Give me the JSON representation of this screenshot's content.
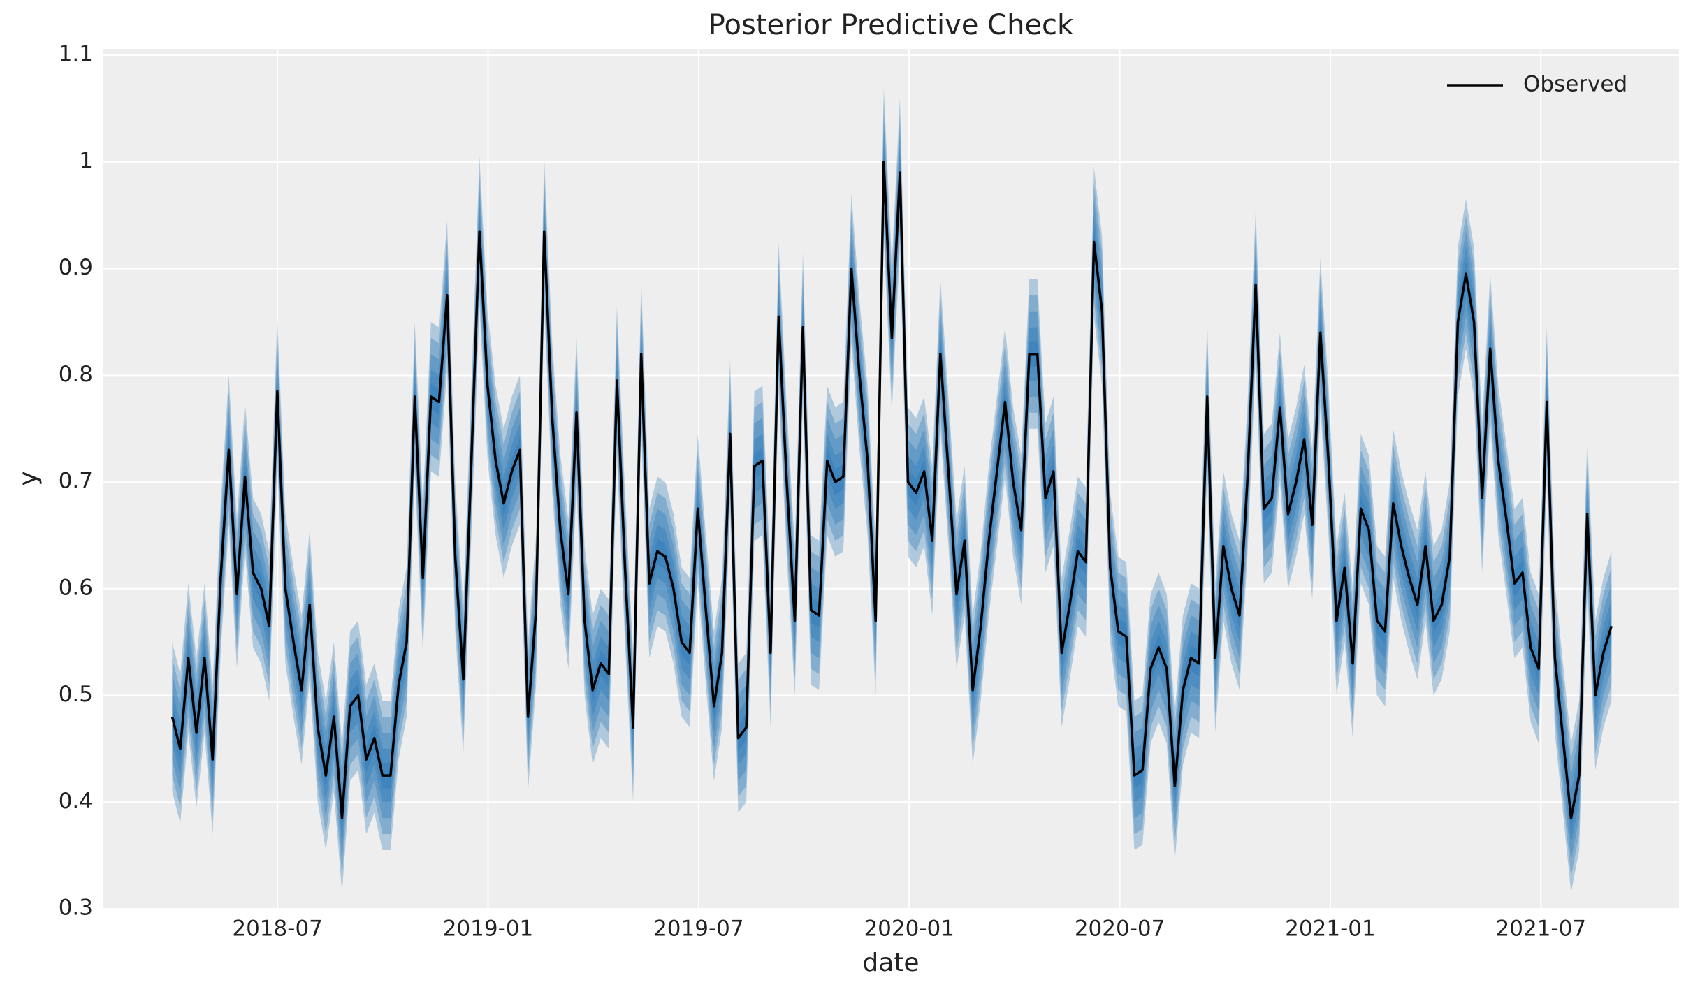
{
  "chart_data": {
    "type": "line",
    "title": "Posterior Predictive Check",
    "x_label": "date",
    "y_label": "y",
    "x": [
      2018.25,
      2018.2692,
      2018.2884,
      2018.3076,
      2018.3268,
      2018.346,
      2018.3652,
      2018.3844,
      2018.4036,
      2018.4228,
      2018.442,
      2018.4612,
      2018.4804,
      2018.4996,
      2018.5188,
      2018.538,
      2018.5572,
      2018.5764,
      2018.5956,
      2018.6148,
      2018.634,
      2018.6532,
      2018.6724,
      2018.6916,
      2018.7108,
      2018.73,
      2018.7492,
      2018.7684,
      2018.7876,
      2018.8068,
      2018.826,
      2018.8452,
      2018.8644,
      2018.8836,
      2018.9028,
      2018.922,
      2018.9412,
      2018.9604,
      2018.9796,
      2018.9988,
      2019.018,
      2019.0372,
      2019.0564,
      2019.0756,
      2019.0948,
      2019.114,
      2019.1332,
      2019.1524,
      2019.1716,
      2019.1908,
      2019.21,
      2019.2292,
      2019.2484,
      2019.2676,
      2019.2868,
      2019.306,
      2019.3252,
      2019.3444,
      2019.3636,
      2019.3828,
      2019.402,
      2019.4212,
      2019.4404,
      2019.4596,
      2019.4788,
      2019.498,
      2019.5172,
      2019.5364,
      2019.5556,
      2019.5748,
      2019.594,
      2019.6132,
      2019.6324,
      2019.6516,
      2019.6708,
      2019.69,
      2019.7092,
      2019.7284,
      2019.7476,
      2019.7668,
      2019.786,
      2019.8052,
      2019.8244,
      2019.8436,
      2019.8628,
      2019.882,
      2019.9012,
      2019.9204,
      2019.9396,
      2019.9588,
      2019.978,
      2019.9972,
      2020.0164,
      2020.0356,
      2020.0548,
      2020.074,
      2020.0932,
      2020.1124,
      2020.1316,
      2020.1508,
      2020.17,
      2020.1892,
      2020.2084,
      2020.2276,
      2020.2468,
      2020.266,
      2020.2852,
      2020.3044,
      2020.3236,
      2020.3428,
      2020.362,
      2020.3812,
      2020.4004,
      2020.4196,
      2020.4388,
      2020.458,
      2020.4772,
      2020.4964,
      2020.5156,
      2020.5348,
      2020.554,
      2020.5732,
      2020.5924,
      2020.6116,
      2020.6308,
      2020.65,
      2020.6692,
      2020.6884,
      2020.7076,
      2020.7268,
      2020.746,
      2020.7652,
      2020.7844,
      2020.8036,
      2020.8228,
      2020.842,
      2020.8612,
      2020.8804,
      2020.8996,
      2020.9188,
      2020.938,
      2020.9572,
      2020.9764,
      2020.9956,
      2021.0148,
      2021.034,
      2021.0532,
      2021.0724,
      2021.0916,
      2021.1108,
      2021.13,
      2021.1492,
      2021.1684,
      2021.1876,
      2021.2068,
      2021.226,
      2021.2452,
      2021.2644,
      2021.2836,
      2021.3028,
      2021.322,
      2021.3412,
      2021.3604,
      2021.3796,
      2021.3988,
      2021.418,
      2021.4372,
      2021.4564,
      2021.4756,
      2021.4948,
      2021.514,
      2021.5332,
      2021.5524,
      2021.5716,
      2021.5908,
      2021.61,
      2021.6292,
      2021.6484,
      2021.6676
    ],
    "series": [
      {
        "name": "Observed",
        "color": "#000000",
        "values": [
          0.48,
          0.45,
          0.535,
          0.465,
          0.535,
          0.44,
          0.61,
          0.73,
          0.595,
          0.705,
          0.615,
          0.6,
          0.565,
          0.785,
          0.6,
          0.55,
          0.505,
          0.585,
          0.47,
          0.425,
          0.48,
          0.385,
          0.49,
          0.5,
          0.44,
          0.46,
          0.425,
          0.425,
          0.51,
          0.55,
          0.78,
          0.61,
          0.78,
          0.775,
          0.875,
          0.63,
          0.515,
          0.72,
          0.935,
          0.79,
          0.72,
          0.68,
          0.71,
          0.73,
          0.48,
          0.58,
          0.935,
          0.76,
          0.655,
          0.595,
          0.765,
          0.57,
          0.505,
          0.53,
          0.52,
          0.795,
          0.62,
          0.47,
          0.82,
          0.605,
          0.635,
          0.63,
          0.6,
          0.55,
          0.54,
          0.675,
          0.58,
          0.49,
          0.54,
          0.745,
          0.46,
          0.47,
          0.715,
          0.72,
          0.54,
          0.855,
          0.7,
          0.57,
          0.845,
          0.58,
          0.575,
          0.72,
          0.7,
          0.705,
          0.9,
          0.8,
          0.72,
          0.57,
          1.0,
          0.835,
          0.99,
          0.7,
          0.69,
          0.71,
          0.645,
          0.82,
          0.71,
          0.595,
          0.645,
          0.505,
          0.565,
          0.645,
          0.71,
          0.775,
          0.7,
          0.655,
          0.82,
          0.82,
          0.685,
          0.71,
          0.54,
          0.585,
          0.635,
          0.625,
          0.925,
          0.86,
          0.62,
          0.56,
          0.555,
          0.425,
          0.43,
          0.525,
          0.545,
          0.525,
          0.415,
          0.505,
          0.535,
          0.53,
          0.78,
          0.535,
          0.64,
          0.6,
          0.575,
          0.705,
          0.885,
          0.675,
          0.685,
          0.77,
          0.67,
          0.7,
          0.74,
          0.66,
          0.84,
          0.72,
          0.57,
          0.62,
          0.53,
          0.675,
          0.655,
          0.57,
          0.56,
          0.68,
          0.64,
          0.61,
          0.585,
          0.64,
          0.57,
          0.585,
          0.63,
          0.85,
          0.895,
          0.85,
          0.685,
          0.825,
          0.72,
          0.665,
          0.605,
          0.615,
          0.545,
          0.525,
          0.775,
          0.535,
          0.46,
          0.385,
          0.425,
          0.67,
          0.5,
          0.54,
          0.565
        ]
      }
    ],
    "bands": {
      "color": "#1f6fb4",
      "widths": [
        0.07,
        0.055,
        0.04,
        0.025,
        0.012
      ]
    },
    "xlim": [
      2018.085,
      2021.828
    ],
    "ylim": [
      0.3,
      1.106
    ],
    "xticks": [
      {
        "value": 2018.5,
        "label": "2018-07"
      },
      {
        "value": 2019,
        "label": "2019-01"
      },
      {
        "value": 2019.5,
        "label": "2019-07"
      },
      {
        "value": 2020,
        "label": "2020-01"
      },
      {
        "value": 2020.5,
        "label": "2020-07"
      },
      {
        "value": 2021,
        "label": "2021-01"
      },
      {
        "value": 2021.5,
        "label": "2021-07"
      }
    ],
    "yticks": [
      0.3,
      0.4,
      0.5,
      0.6,
      0.7,
      0.8,
      0.9,
      1.0,
      1.1
    ],
    "grid": true,
    "legend": "upper right"
  }
}
